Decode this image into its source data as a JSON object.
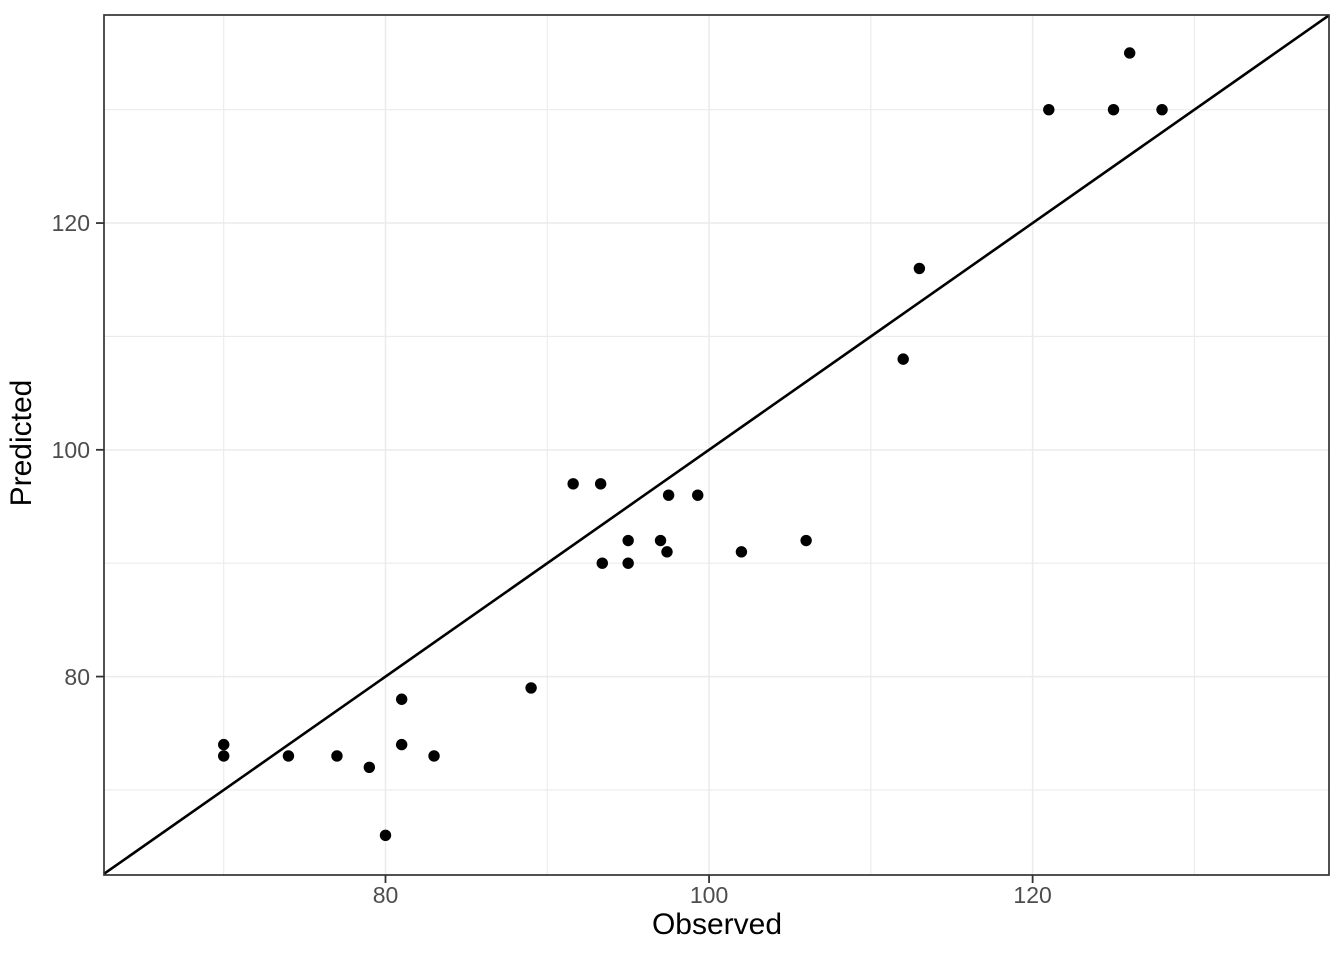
{
  "chart_data": {
    "type": "scatter",
    "title": "",
    "xlabel": "Observed",
    "ylabel": "Predicted",
    "x_domain": [
      62.6,
      138.32
    ],
    "y_domain": [
      62.5,
      138.35
    ],
    "x_major_ticks": [
      80,
      100,
      120
    ],
    "x_minor_ticks": [
      70,
      90,
      110,
      130
    ],
    "y_major_ticks": [
      80,
      100,
      120
    ],
    "y_minor_ticks": [
      70,
      90,
      110,
      130
    ],
    "x_tick_labels": [
      "80",
      "100",
      "120"
    ],
    "y_tick_labels": [
      "80",
      "100",
      "120"
    ],
    "grid": true,
    "legend_position": "none",
    "identity_line": true,
    "points": [
      [
        70,
        74
      ],
      [
        70,
        73
      ],
      [
        74,
        73
      ],
      [
        77,
        73
      ],
      [
        79,
        72
      ],
      [
        80,
        66
      ],
      [
        81,
        78
      ],
      [
        81,
        74
      ],
      [
        83,
        73
      ],
      [
        89,
        79
      ],
      [
        91.6,
        97
      ],
      [
        93.3,
        97
      ],
      [
        97.5,
        96
      ],
      [
        99.3,
        96
      ],
      [
        93.4,
        90
      ],
      [
        95,
        92
      ],
      [
        95,
        90
      ],
      [
        97,
        92
      ],
      [
        97.4,
        91
      ],
      [
        102,
        91
      ],
      [
        106,
        92
      ],
      [
        112,
        108
      ],
      [
        113,
        116
      ],
      [
        121,
        130
      ],
      [
        125,
        130
      ],
      [
        128,
        130
      ],
      [
        126,
        135
      ]
    ],
    "colors": {
      "point": "#000000",
      "identity_line": "#000000",
      "grid_major": "#ebebeb",
      "grid_minor": "#ebebeb",
      "panel_border": "#333333",
      "tick_mark": "#333333",
      "tick_label": "#4d4d4d",
      "axis_title": "#000000",
      "background": "#ffffff"
    }
  }
}
